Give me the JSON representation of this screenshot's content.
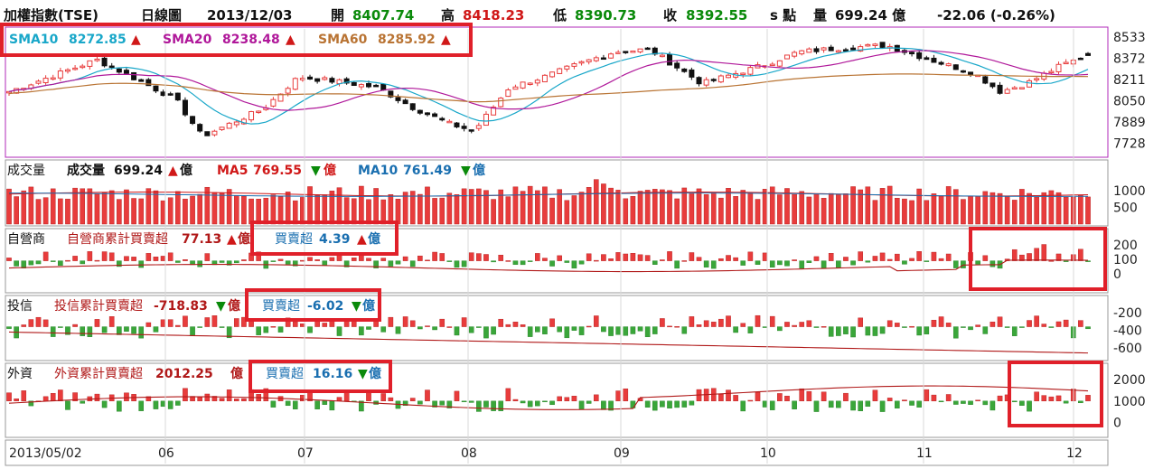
{
  "header": {
    "name": "加權指數(TSE)",
    "period": "日線圖",
    "date": "2013/12/03",
    "open_label": "開",
    "open": "8407.74",
    "high_label": "高",
    "high": "8418.23",
    "low_label": "低",
    "low": "8390.73",
    "close_label": "收",
    "close": "8392.55",
    "unit_label": "s 點",
    "volume_label": "量",
    "volume": "699.24 億",
    "change": "-22.06 (-0.26%)"
  },
  "colors": {
    "up": "#e83c3c",
    "down": "#3aa63a",
    "sma10": "#19a7c9",
    "sma20": "#b0189a",
    "sma60": "#b97434",
    "ma5": "#d01818",
    "ma10": "#1a6fb0",
    "highlight": "#e0202a"
  },
  "panels": {
    "price": {
      "sma10_label": "SMA10",
      "sma10_value": "8272.85",
      "sma20_label": "SMA20",
      "sma20_value": "8238.48",
      "sma60_label": "SMA60",
      "sma60_value": "8285.92"
    },
    "volume": {
      "title": "成交量",
      "label": "成交量",
      "value": "699.24",
      "unit": "億",
      "ma5_label": "MA5",
      "ma5_value": "769.55",
      "ma10_label": "MA10",
      "ma10_value": "761.49"
    },
    "dealer": {
      "title": "自營商",
      "cum_label": "自營商累計買賣超",
      "cum_value": "77.13",
      "unit": "億",
      "net_label": "買賣超",
      "net_value": "4.39"
    },
    "trust": {
      "title": "投信",
      "cum_label": "投信累計買賣超",
      "cum_value": "-718.83",
      "unit": "億",
      "net_label": "買賣超",
      "net_value": "-6.02"
    },
    "foreign": {
      "title": "外資",
      "cum_label": "外資累計買賣超",
      "cum_value": "2012.25",
      "unit": "億",
      "net_label": "買賣超",
      "net_value": "16.16"
    }
  },
  "chart_data": [
    {
      "type": "candlestick",
      "x_labels": [
        "2013/05/02",
        "06",
        "07",
        "08",
        "09",
        "10",
        "11",
        "12"
      ],
      "y_ticks": [
        7728,
        7889,
        8050,
        8211,
        8372,
        8533
      ],
      "ylim": [
        7650,
        8580
      ],
      "series_names": [
        "SMA10",
        "SMA20",
        "SMA60"
      ],
      "latest": {
        "open": 8407.74,
        "high": 8418.23,
        "low": 8390.73,
        "close": 8392.55
      }
    },
    {
      "type": "bar",
      "name": "成交量",
      "y_ticks": [
        500,
        1000
      ],
      "ylim": [
        0,
        1300
      ],
      "ma": [
        "MA5",
        "MA10"
      ]
    },
    {
      "type": "bar",
      "name": "自營商",
      "y_ticks": [
        0,
        100,
        200
      ],
      "ylim": [
        -120,
        270
      ]
    },
    {
      "type": "bar",
      "name": "投信",
      "y_ticks": [
        -200,
        -400,
        -600
      ],
      "ylim": [
        -720,
        -80
      ]
    },
    {
      "type": "bar",
      "name": "外資",
      "y_ticks": [
        0,
        1000,
        2000
      ],
      "ylim": [
        -600,
        2500
      ]
    }
  ]
}
